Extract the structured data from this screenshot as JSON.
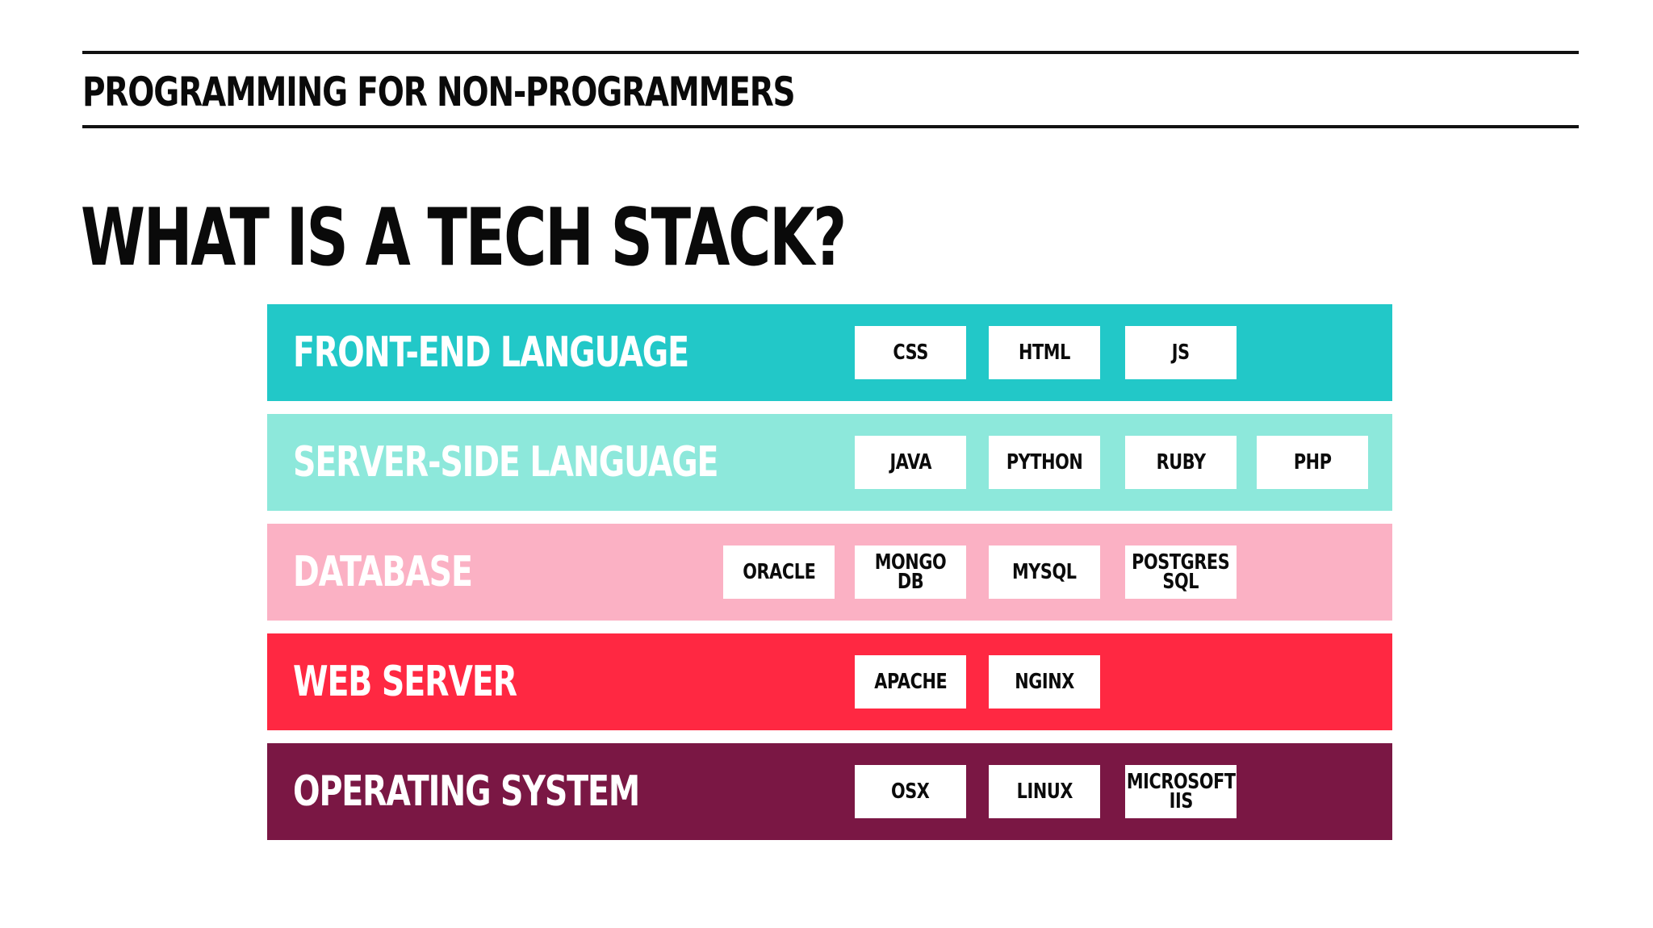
{
  "header": {
    "course_title": "PROGRAMMING FOR NON-PROGRAMMERS"
  },
  "slide": {
    "title": "WHAT IS A TECH STACK?"
  },
  "colors": {
    "front_end": "#22c8c8",
    "server_side": "#8de8db",
    "database": "#fbb1c4",
    "web_server": "#ff2842",
    "operating_system": "#7a1744",
    "label_light": "#ffffff",
    "chip_background": "#ffffff"
  },
  "stack": {
    "layers": [
      {
        "label": "FRONT-END LANGUAGE",
        "items": [
          "CSS",
          "HTML",
          "JS"
        ]
      },
      {
        "label": "SERVER-SIDE LANGUAGE",
        "items": [
          "JAVA",
          "PYTHON",
          "RUBY",
          "PHP"
        ]
      },
      {
        "label": "DATABASE",
        "items": [
          "ORACLE",
          "MONGO DB",
          "MYSQL",
          "POSTGRES\nSQL"
        ]
      },
      {
        "label": "WEB SERVER",
        "items": [
          "APACHE",
          "NGINX"
        ]
      },
      {
        "label": "OPERATING SYSTEM",
        "items": [
          "OSX",
          "LINUX",
          "MICROSOFT\nIIS"
        ]
      }
    ]
  }
}
